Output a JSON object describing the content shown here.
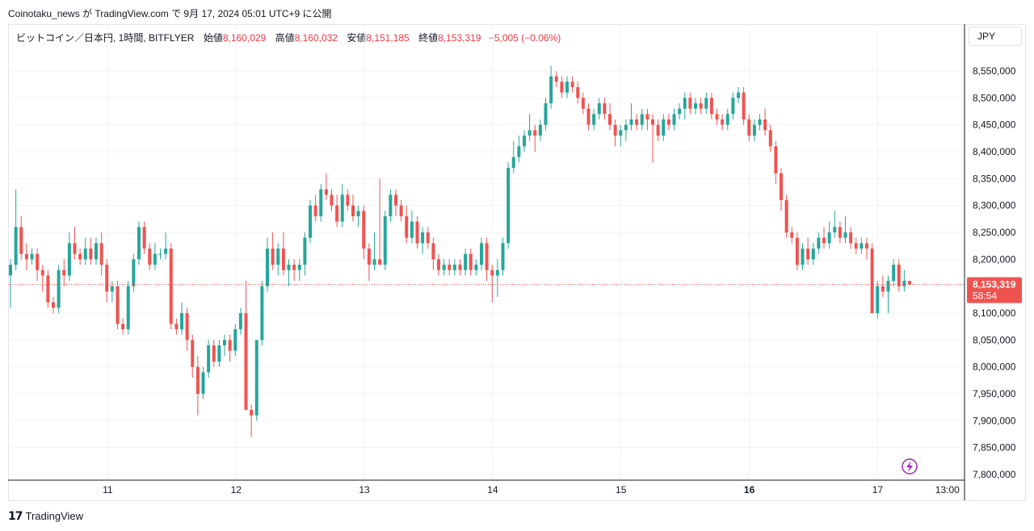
{
  "caption": "Coinotaku_news が TradingView.com で 9月 17, 2024 05:01 UTC+9 に公開",
  "legend": {
    "symbol": "ビットコイン／日本円, 1時間, BITFLYER",
    "open_label": "始値",
    "open": "8,160,029",
    "high_label": "高値",
    "high": "8,160,032",
    "low_label": "安値",
    "low": "8,151,185",
    "close_label": "終値",
    "close": "8,153,319",
    "change": "−5,005 (−0.06%)"
  },
  "currency": "JPY",
  "price_tag": {
    "price": "8,153,319",
    "countdown": "58:54"
  },
  "footer": {
    "brand": "TradingView"
  },
  "colors": {
    "up": "#26a69a",
    "down": "#ef5350",
    "grid": "#f0f3fa",
    "last_line": "#ef5350"
  },
  "chart_data": {
    "type": "candlestick",
    "interval": "1h",
    "ylim": [
      7780000,
      8600000
    ],
    "y_ticks": [
      7800000,
      7850000,
      7900000,
      7950000,
      8000000,
      8050000,
      8100000,
      8150000,
      8200000,
      8250000,
      8300000,
      8350000,
      8400000,
      8450000,
      8500000,
      8550000
    ],
    "x_ticks": [
      {
        "label": "11",
        "pos": 0.1042,
        "bold": false
      },
      {
        "label": "12",
        "pos": 0.2384,
        "bold": false
      },
      {
        "label": "13",
        "pos": 0.3725,
        "bold": false
      },
      {
        "label": "14",
        "pos": 0.5067,
        "bold": false
      },
      {
        "label": "15",
        "pos": 0.6408,
        "bold": false
      },
      {
        "label": "16",
        "pos": 0.775,
        "bold": true
      },
      {
        "label": "17",
        "pos": 0.9091,
        "bold": false
      },
      {
        "label": "13:00",
        "pos": 0.9821,
        "bold": false
      }
    ],
    "last_price": 8153319,
    "candles_ohlc": [
      [
        8170000,
        8200000,
        8110000,
        8190000
      ],
      [
        8190000,
        8330000,
        8180000,
        8260000
      ],
      [
        8260000,
        8280000,
        8200000,
        8210000
      ],
      [
        8210000,
        8230000,
        8180000,
        8200000
      ],
      [
        8200000,
        8220000,
        8190000,
        8210000
      ],
      [
        8210000,
        8220000,
        8160000,
        8180000
      ],
      [
        8180000,
        8190000,
        8140000,
        8170000
      ],
      [
        8170000,
        8180000,
        8110000,
        8120000
      ],
      [
        8120000,
        8130000,
        8100000,
        8110000
      ],
      [
        8110000,
        8190000,
        8100000,
        8180000
      ],
      [
        8180000,
        8200000,
        8150000,
        8170000
      ],
      [
        8170000,
        8250000,
        8160000,
        8230000
      ],
      [
        8230000,
        8260000,
        8200000,
        8210000
      ],
      [
        8210000,
        8220000,
        8190000,
        8200000
      ],
      [
        8200000,
        8240000,
        8190000,
        8220000
      ],
      [
        8220000,
        8240000,
        8190000,
        8200000
      ],
      [
        8200000,
        8240000,
        8190000,
        8230000
      ],
      [
        8230000,
        8250000,
        8170000,
        8190000
      ],
      [
        8190000,
        8200000,
        8120000,
        8140000
      ],
      [
        8140000,
        8160000,
        8120000,
        8150000
      ],
      [
        8150000,
        8160000,
        8070000,
        8080000
      ],
      [
        8080000,
        8090000,
        8060000,
        8070000
      ],
      [
        8070000,
        8160000,
        8060000,
        8150000
      ],
      [
        8150000,
        8210000,
        8140000,
        8200000
      ],
      [
        8200000,
        8270000,
        8190000,
        8260000
      ],
      [
        8260000,
        8270000,
        8210000,
        8220000
      ],
      [
        8220000,
        8230000,
        8180000,
        8190000
      ],
      [
        8190000,
        8230000,
        8180000,
        8210000
      ],
      [
        8210000,
        8220000,
        8200000,
        8210000
      ],
      [
        8210000,
        8250000,
        8200000,
        8220000
      ],
      [
        8220000,
        8230000,
        8070000,
        8080000
      ],
      [
        8080000,
        8090000,
        8060000,
        8070000
      ],
      [
        8070000,
        8120000,
        8060000,
        8100000
      ],
      [
        8100000,
        8110000,
        8030000,
        8050000
      ],
      [
        8050000,
        8060000,
        7980000,
        8000000
      ],
      [
        8000000,
        8020000,
        7910000,
        7950000
      ],
      [
        7950000,
        8000000,
        7940000,
        7990000
      ],
      [
        7990000,
        8050000,
        7980000,
        8040000
      ],
      [
        8040000,
        8050000,
        8000000,
        8010000
      ],
      [
        8010000,
        8050000,
        8000000,
        8040000
      ],
      [
        8040000,
        8060000,
        8020000,
        8050000
      ],
      [
        8050000,
        8060000,
        8010000,
        8030000
      ],
      [
        8030000,
        8080000,
        8020000,
        8070000
      ],
      [
        8070000,
        8110000,
        8060000,
        8100000
      ],
      [
        8100000,
        8160000,
        7920000,
        7920000
      ],
      [
        7920000,
        7930000,
        7870000,
        7910000
      ],
      [
        7910000,
        8050000,
        7900000,
        8050000
      ],
      [
        8050000,
        8160000,
        8040000,
        8150000
      ],
      [
        8150000,
        8240000,
        8140000,
        8220000
      ],
      [
        8220000,
        8250000,
        8180000,
        8190000
      ],
      [
        8190000,
        8230000,
        8170000,
        8220000
      ],
      [
        8220000,
        8250000,
        8170000,
        8180000
      ],
      [
        8180000,
        8200000,
        8150000,
        8190000
      ],
      [
        8190000,
        8200000,
        8160000,
        8180000
      ],
      [
        8180000,
        8200000,
        8160000,
        8190000
      ],
      [
        8190000,
        8250000,
        8170000,
        8240000
      ],
      [
        8240000,
        8310000,
        8230000,
        8300000
      ],
      [
        8300000,
        8320000,
        8270000,
        8280000
      ],
      [
        8280000,
        8340000,
        8270000,
        8330000
      ],
      [
        8330000,
        8360000,
        8310000,
        8320000
      ],
      [
        8320000,
        8330000,
        8290000,
        8300000
      ],
      [
        8300000,
        8320000,
        8260000,
        8270000
      ],
      [
        8270000,
        8340000,
        8260000,
        8320000
      ],
      [
        8320000,
        8330000,
        8290000,
        8300000
      ],
      [
        8300000,
        8320000,
        8270000,
        8280000
      ],
      [
        8280000,
        8300000,
        8260000,
        8290000
      ],
      [
        8290000,
        8300000,
        8200000,
        8220000
      ],
      [
        8220000,
        8230000,
        8160000,
        8190000
      ],
      [
        8190000,
        8250000,
        8180000,
        8200000
      ],
      [
        8200000,
        8350000,
        8190000,
        8190000
      ],
      [
        8190000,
        8290000,
        8180000,
        8280000
      ],
      [
        8280000,
        8330000,
        8270000,
        8320000
      ],
      [
        8320000,
        8330000,
        8280000,
        8300000
      ],
      [
        8300000,
        8310000,
        8270000,
        8280000
      ],
      [
        8280000,
        8300000,
        8230000,
        8240000
      ],
      [
        8240000,
        8290000,
        8230000,
        8270000
      ],
      [
        8270000,
        8280000,
        8220000,
        8230000
      ],
      [
        8230000,
        8260000,
        8210000,
        8250000
      ],
      [
        8250000,
        8260000,
        8220000,
        8230000
      ],
      [
        8230000,
        8240000,
        8180000,
        8200000
      ],
      [
        8200000,
        8210000,
        8170000,
        8180000
      ],
      [
        8180000,
        8200000,
        8170000,
        8190000
      ],
      [
        8190000,
        8200000,
        8170000,
        8180000
      ],
      [
        8180000,
        8200000,
        8170000,
        8190000
      ],
      [
        8190000,
        8200000,
        8170000,
        8180000
      ],
      [
        8180000,
        8220000,
        8170000,
        8210000
      ],
      [
        8210000,
        8220000,
        8170000,
        8180000
      ],
      [
        8180000,
        8200000,
        8170000,
        8190000
      ],
      [
        8190000,
        8240000,
        8180000,
        8230000
      ],
      [
        8230000,
        8240000,
        8160000,
        8180000
      ],
      [
        8180000,
        8190000,
        8120000,
        8170000
      ],
      [
        8170000,
        8200000,
        8130000,
        8180000
      ],
      [
        8180000,
        8240000,
        8170000,
        8230000
      ],
      [
        8230000,
        8380000,
        8220000,
        8370000
      ],
      [
        8370000,
        8420000,
        8360000,
        8390000
      ],
      [
        8390000,
        8430000,
        8380000,
        8410000
      ],
      [
        8410000,
        8440000,
        8400000,
        8430000
      ],
      [
        8430000,
        8470000,
        8420000,
        8440000
      ],
      [
        8440000,
        8450000,
        8400000,
        8430000
      ],
      [
        8430000,
        8460000,
        8420000,
        8450000
      ],
      [
        8450000,
        8500000,
        8440000,
        8490000
      ],
      [
        8490000,
        8560000,
        8480000,
        8540000
      ],
      [
        8540000,
        8550000,
        8520000,
        8530000
      ],
      [
        8530000,
        8540000,
        8500000,
        8510000
      ],
      [
        8510000,
        8540000,
        8500000,
        8530000
      ],
      [
        8530000,
        8540000,
        8510000,
        8520000
      ],
      [
        8520000,
        8530000,
        8490000,
        8500000
      ],
      [
        8500000,
        8510000,
        8470000,
        8480000
      ],
      [
        8480000,
        8490000,
        8440000,
        8450000
      ],
      [
        8450000,
        8480000,
        8440000,
        8470000
      ],
      [
        8470000,
        8500000,
        8460000,
        8490000
      ],
      [
        8490000,
        8500000,
        8460000,
        8470000
      ],
      [
        8470000,
        8490000,
        8440000,
        8450000
      ],
      [
        8450000,
        8460000,
        8410000,
        8430000
      ],
      [
        8430000,
        8450000,
        8410000,
        8440000
      ],
      [
        8440000,
        8460000,
        8420000,
        8450000
      ],
      [
        8450000,
        8490000,
        8440000,
        8460000
      ],
      [
        8460000,
        8470000,
        8440000,
        8450000
      ],
      [
        8450000,
        8480000,
        8440000,
        8470000
      ],
      [
        8470000,
        8480000,
        8440000,
        8460000
      ],
      [
        8460000,
        8470000,
        8380000,
        8450000
      ],
      [
        8450000,
        8460000,
        8420000,
        8430000
      ],
      [
        8430000,
        8470000,
        8420000,
        8460000
      ],
      [
        8460000,
        8470000,
        8440000,
        8450000
      ],
      [
        8450000,
        8480000,
        8440000,
        8470000
      ],
      [
        8470000,
        8490000,
        8460000,
        8480000
      ],
      [
        8480000,
        8510000,
        8460000,
        8500000
      ],
      [
        8500000,
        8510000,
        8470000,
        8480000
      ],
      [
        8480000,
        8500000,
        8470000,
        8490000
      ],
      [
        8490000,
        8500000,
        8470000,
        8480000
      ],
      [
        8480000,
        8510000,
        8470000,
        8500000
      ],
      [
        8500000,
        8510000,
        8460000,
        8470000
      ],
      [
        8470000,
        8480000,
        8450000,
        8460000
      ],
      [
        8460000,
        8470000,
        8440000,
        8450000
      ],
      [
        8450000,
        8480000,
        8440000,
        8470000
      ],
      [
        8470000,
        8510000,
        8460000,
        8500000
      ],
      [
        8500000,
        8520000,
        8490000,
        8510000
      ],
      [
        8510000,
        8520000,
        8450000,
        8460000
      ],
      [
        8460000,
        8470000,
        8420000,
        8430000
      ],
      [
        8430000,
        8460000,
        8420000,
        8450000
      ],
      [
        8450000,
        8470000,
        8440000,
        8460000
      ],
      [
        8460000,
        8480000,
        8430000,
        8440000
      ],
      [
        8440000,
        8450000,
        8400000,
        8410000
      ],
      [
        8410000,
        8420000,
        8340000,
        8360000
      ],
      [
        8360000,
        8370000,
        8290000,
        8310000
      ],
      [
        8310000,
        8320000,
        8240000,
        8250000
      ],
      [
        8250000,
        8260000,
        8230000,
        8240000
      ],
      [
        8240000,
        8250000,
        8180000,
        8190000
      ],
      [
        8190000,
        8230000,
        8180000,
        8220000
      ],
      [
        8220000,
        8240000,
        8190000,
        8200000
      ],
      [
        8200000,
        8230000,
        8190000,
        8220000
      ],
      [
        8220000,
        8250000,
        8210000,
        8240000
      ],
      [
        8240000,
        8260000,
        8220000,
        8230000
      ],
      [
        8230000,
        8270000,
        8220000,
        8250000
      ],
      [
        8250000,
        8290000,
        8240000,
        8260000
      ],
      [
        8260000,
        8270000,
        8230000,
        8240000
      ],
      [
        8240000,
        8280000,
        8230000,
        8250000
      ],
      [
        8250000,
        8260000,
        8220000,
        8230000
      ],
      [
        8230000,
        8240000,
        8210000,
        8220000
      ],
      [
        8220000,
        8240000,
        8210000,
        8230000
      ],
      [
        8230000,
        8240000,
        8200000,
        8220000
      ],
      [
        8220000,
        8230000,
        8140000,
        8100000
      ],
      [
        8100000,
        8160000,
        8090000,
        8150000
      ],
      [
        8150000,
        8170000,
        8130000,
        8140000
      ],
      [
        8140000,
        8170000,
        8100000,
        8160000
      ],
      [
        8160000,
        8200000,
        8150000,
        8190000
      ],
      [
        8190000,
        8200000,
        8140000,
        8150000
      ],
      [
        8150000,
        8180000,
        8140000,
        8160000
      ],
      [
        8160000,
        8160000,
        8151185,
        8153319
      ]
    ]
  }
}
